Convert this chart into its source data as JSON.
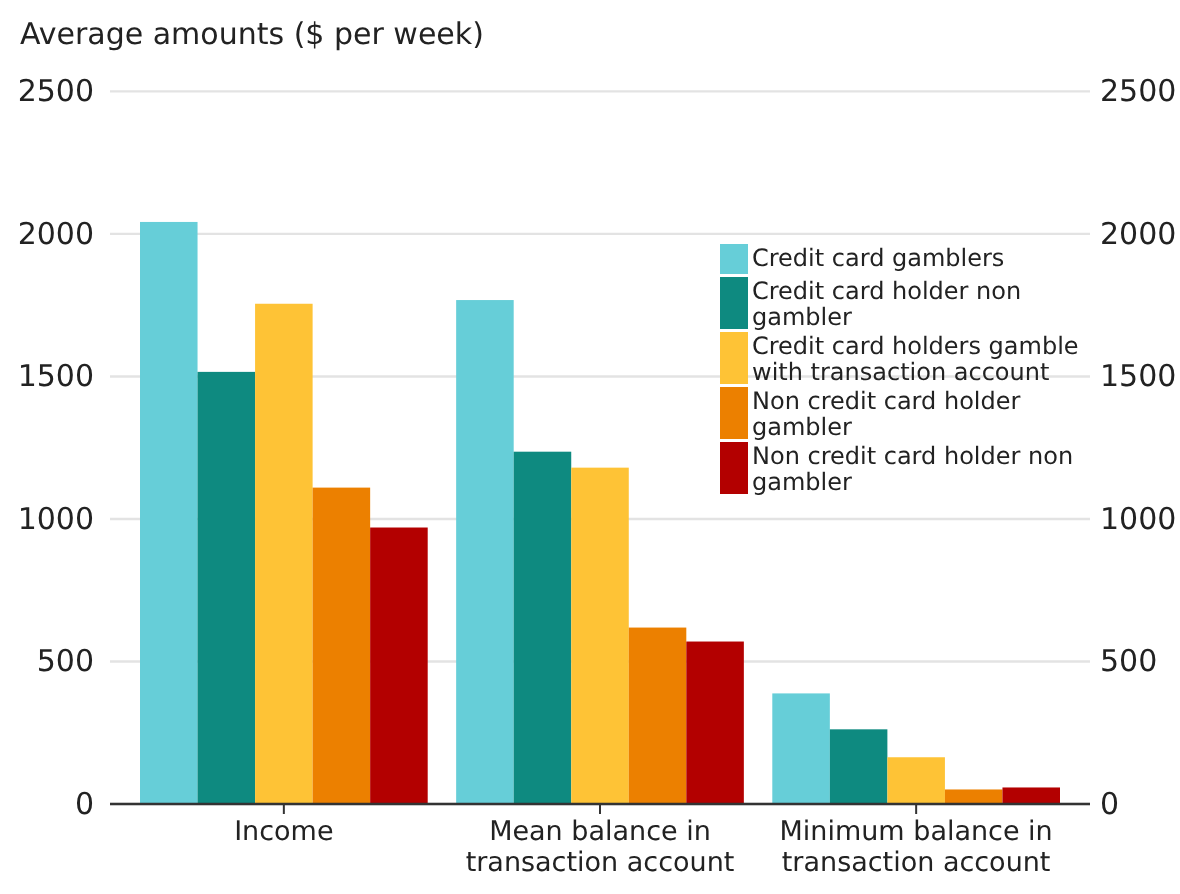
{
  "chart_data": {
    "type": "bar",
    "ylabel": "Average amounts ($ per week)",
    "categories": [
      "Income",
      "Mean balance in transaction account",
      "Minimum balance in transaction account"
    ],
    "series": [
      {
        "name": "Credit card gamblers",
        "color": "#66ced8",
        "values": [
          2042,
          1768,
          388
        ]
      },
      {
        "name": "Credit card holder non gambler",
        "color": "#0e8a80",
        "values": [
          1516,
          1236,
          262
        ]
      },
      {
        "name": "Credit card holders gamble with transaction account",
        "color": "#fec336",
        "values": [
          1755,
          1180,
          164
        ]
      },
      {
        "name": "Non credit card holder gambler",
        "color": "#ec8000",
        "values": [
          1110,
          619,
          51
        ]
      },
      {
        "name": "Non credit card holder non gambler",
        "color": "#b30000",
        "values": [
          970,
          570,
          58
        ]
      }
    ],
    "ylim": [
      0,
      2500
    ],
    "yticks": [
      0,
      500,
      1000,
      1500,
      2000,
      2500
    ],
    "y2lim": [
      0,
      2500
    ],
    "y2ticks": [
      0,
      500,
      1000,
      1500,
      2000,
      2500
    ],
    "grid": "y",
    "legend": "top right"
  }
}
